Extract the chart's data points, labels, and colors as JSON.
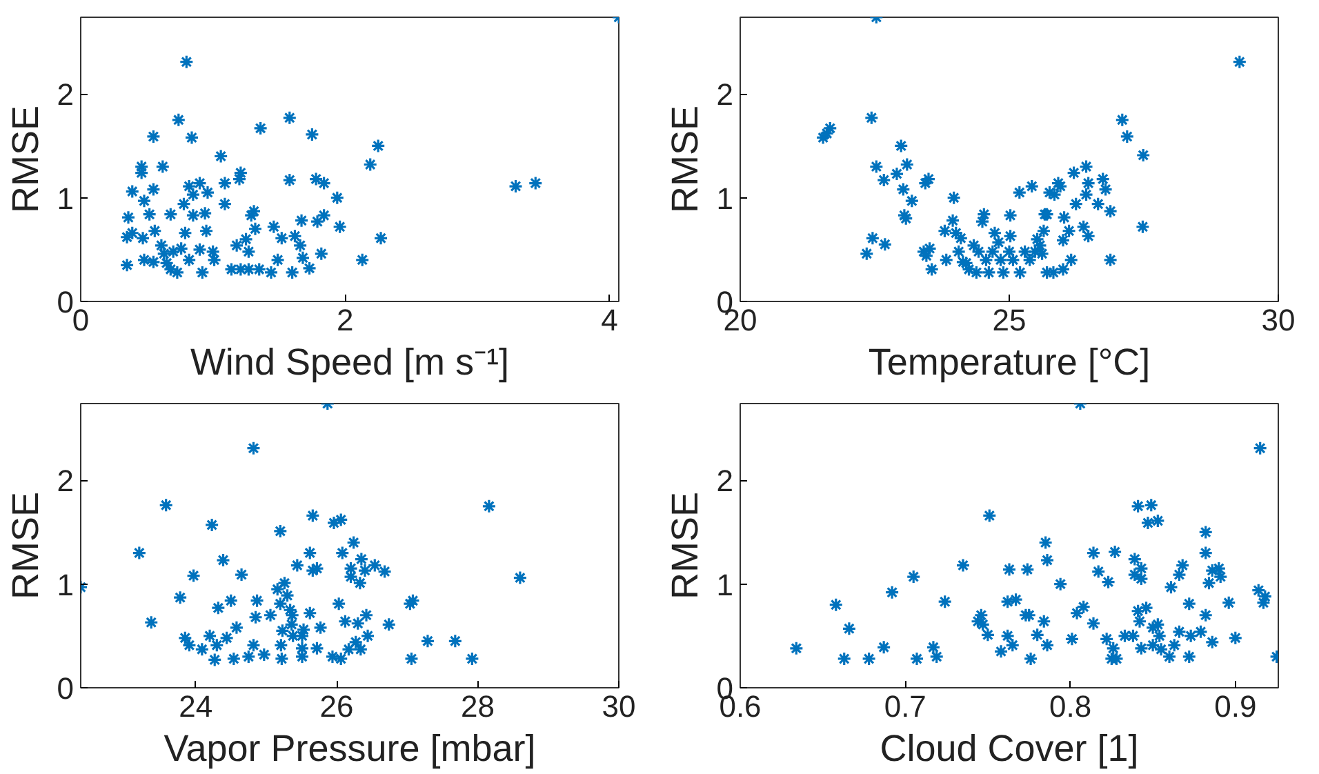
{
  "chart_data": [
    {
      "type": "scatter",
      "xlabel": "Wind Speed [m s⁻¹]",
      "ylabel": "RMSE",
      "xlim": [
        0,
        4.07
      ],
      "xticks": [
        0,
        2,
        4
      ],
      "ylim": [
        0,
        2.74
      ],
      "yticks": [
        0,
        1,
        2
      ],
      "grid": false,
      "marker": "cross",
      "x": [
        4.07,
        0.8,
        0.74,
        0.84,
        0.55,
        0.46,
        0.46,
        0.62,
        0.39,
        0.55,
        0.48,
        0.36,
        0.52,
        0.35,
        0.39,
        0.47,
        0.35,
        0.48,
        0.55,
        0.56,
        0.61,
        0.63,
        0.65,
        0.68,
        0.73,
        0.68,
        0.7,
        0.76,
        0.79,
        0.82,
        0.78,
        0.82,
        0.85,
        0.9,
        0.96,
        0.85,
        0.94,
        0.95,
        0.9,
        1.0,
        1.01,
        0.92,
        1.06,
        1.09,
        1.09,
        1.21,
        1.2,
        1.18,
        1.25,
        1.27,
        1.14,
        1.21,
        1.27,
        1.29,
        1.31,
        1.32,
        1.36,
        1.35,
        1.44,
        1.46,
        1.49,
        1.52,
        1.58,
        1.58,
        1.6,
        1.62,
        1.66,
        1.68,
        1.73,
        1.67,
        1.75,
        1.78,
        1.84,
        1.79,
        1.84,
        1.82,
        1.94,
        1.96,
        2.13,
        2.19,
        2.25,
        2.27,
        3.29,
        3.44
      ],
      "series": [
        {
          "color": "#0072bd",
          "values": [
            2.74,
            2.31,
            1.75,
            1.58,
            1.59,
            1.3,
            1.24,
            1.3,
            1.06,
            1.08,
            0.97,
            0.81,
            0.84,
            0.62,
            0.66,
            0.61,
            0.35,
            0.4,
            0.38,
            0.68,
            0.54,
            0.46,
            0.37,
            0.31,
            0.28,
            0.84,
            0.48,
            0.51,
            0.66,
            0.4,
            0.94,
            1.11,
            1.03,
            1.14,
            1.05,
            0.83,
            0.85,
            0.68,
            0.5,
            0.48,
            0.4,
            0.28,
            1.4,
            1.14,
            0.94,
            1.24,
            1.18,
            0.54,
            0.6,
            0.48,
            0.31,
            0.31,
            0.31,
            0.83,
            0.87,
            0.7,
            1.67,
            0.31,
            0.28,
            0.72,
            0.4,
            0.61,
            1.77,
            1.17,
            0.28,
            0.63,
            0.54,
            0.42,
            0.32,
            0.78,
            1.61,
            1.18,
            1.14,
            0.77,
            0.83,
            0.46,
            1.0,
            0.72,
            0.4,
            1.32,
            1.5,
            0.61,
            1.11,
            1.14
          ]
        }
      ]
    },
    {
      "type": "scatter",
      "xlabel": "Temperature [°C]",
      "ylabel": "RMSE",
      "xlim": [
        20,
        30
      ],
      "xticks": [
        20,
        25,
        30
      ],
      "ylim": [
        0,
        2.74
      ],
      "yticks": [
        0,
        1,
        2
      ],
      "grid": false,
      "marker": "cross",
      "x": [
        22.53,
        29.28,
        21.54,
        21.61,
        21.67,
        22.44,
        22.53,
        22.67,
        22.91,
        22.99,
        23.1,
        23.03,
        23.19,
        23.05,
        23.08,
        22.35,
        22.46,
        22.69,
        23.44,
        23.5,
        23.41,
        23.46,
        23.52,
        23.56,
        23.8,
        23.83,
        23.95,
        23.97,
        24.01,
        24.06,
        24.1,
        24.14,
        24.2,
        24.25,
        24.34,
        24.39,
        24.43,
        24.5,
        24.53,
        24.57,
        24.62,
        24.69,
        24.73,
        24.8,
        24.84,
        24.89,
        25.0,
        25.02,
        25.02,
        25.07,
        25.19,
        25.2,
        25.29,
        25.38,
        25.42,
        25.48,
        25.52,
        25.57,
        25.64,
        25.61,
        25.66,
        25.7,
        25.7,
        25.75,
        25.82,
        25.84,
        25.91,
        25.95,
        26.0,
        26.02,
        26.0,
        26.11,
        26.15,
        26.2,
        26.24,
        26.38,
        26.43,
        26.43,
        26.47,
        26.47,
        26.65,
        26.74,
        26.79,
        26.88,
        26.88,
        27.1,
        27.19,
        27.48,
        27.49
      ],
      "series": [
        {
          "color": "#0072bd",
          "values": [
            2.74,
            2.31,
            1.58,
            1.62,
            1.67,
            1.77,
            1.3,
            1.17,
            1.23,
            1.5,
            1.32,
            1.08,
            0.97,
            0.83,
            0.8,
            0.46,
            0.61,
            0.55,
            1.14,
            1.18,
            0.48,
            0.44,
            0.51,
            0.31,
            0.68,
            0.4,
            0.78,
            1.0,
            0.66,
            0.48,
            0.61,
            0.38,
            0.37,
            0.31,
            0.54,
            0.28,
            0.48,
            0.77,
            0.84,
            0.4,
            0.28,
            0.48,
            0.66,
            0.57,
            0.4,
            0.28,
            0.48,
            0.83,
            0.63,
            0.4,
            1.05,
            0.28,
            0.48,
            0.4,
            1.11,
            0.48,
            0.6,
            0.54,
            0.68,
            0.46,
            0.84,
            0.84,
            0.28,
            1.05,
            0.28,
            1.03,
            1.14,
            1.11,
            0.59,
            0.81,
            0.31,
            0.68,
            0.4,
            1.24,
            0.94,
            0.72,
            1.3,
            1.03,
            1.14,
            0.63,
            0.94,
            1.18,
            1.08,
            0.87,
            0.4,
            1.75,
            1.59,
            0.72,
            1.41
          ]
        }
      ]
    },
    {
      "type": "scatter",
      "xlabel": "Vapor Pressure [mbar]",
      "ylabel": "RMSE",
      "xlim": [
        22.37,
        30
      ],
      "xticks": [
        24,
        26,
        28,
        30
      ],
      "ylim": [
        0,
        2.74
      ],
      "yticks": [
        0,
        1,
        2
      ],
      "grid": false,
      "marker": "cross",
      "x": [
        22.37,
        25.87,
        24.82,
        23.58,
        23.2,
        23.37,
        24.23,
        24.39,
        24.65,
        23.97,
        23.78,
        23.85,
        23.91,
        24.09,
        24.2,
        24.27,
        24.3,
        24.32,
        24.44,
        24.5,
        24.58,
        24.54,
        24.75,
        24.82,
        24.85,
        24.87,
        24.97,
        25.06,
        25.2,
        25.16,
        25.2,
        25.21,
        25.22,
        25.23,
        25.26,
        25.3,
        25.34,
        25.36,
        25.37,
        25.38,
        25.44,
        25.51,
        25.51,
        25.51,
        25.53,
        25.62,
        25.62,
        25.66,
        25.66,
        25.72,
        25.72,
        25.77,
        25.96,
        26.06,
        25.94,
        26.03,
        26.06,
        26.08,
        26.12,
        26.17,
        26.2,
        26.24,
        26.2,
        26.3,
        26.33,
        26.35,
        26.4,
        26.27,
        26.34,
        26.42,
        26.44,
        26.54,
        26.68,
        26.74,
        27.04,
        27.08,
        27.06,
        27.29,
        27.68,
        27.92,
        28.16,
        28.6
      ],
      "series": [
        {
          "color": "#0072bd",
          "values": [
            0.97,
            2.74,
            2.31,
            1.76,
            1.3,
            0.63,
            1.57,
            1.23,
            1.09,
            1.08,
            0.87,
            0.48,
            0.41,
            0.37,
            0.5,
            0.27,
            0.41,
            0.77,
            0.48,
            0.84,
            0.58,
            0.28,
            0.3,
            0.41,
            0.68,
            0.84,
            0.32,
            0.7,
            1.51,
            0.95,
            0.81,
            0.41,
            0.28,
            0.55,
            1.01,
            0.89,
            0.75,
            0.61,
            0.7,
            0.5,
            1.18,
            0.5,
            0.38,
            0.3,
            0.56,
            1.3,
            0.72,
            1.66,
            1.13,
            1.15,
            0.38,
            0.58,
            1.59,
            1.62,
            0.3,
            0.81,
            0.28,
            1.3,
            0.64,
            0.37,
            1.15,
            1.4,
            1.07,
            0.62,
            1.01,
            1.24,
            1.13,
            0.44,
            0.37,
            0.7,
            0.5,
            1.18,
            1.12,
            0.61,
            0.81,
            0.84,
            0.28,
            0.45,
            0.45,
            0.28,
            1.75,
            1.06
          ]
        }
      ]
    },
    {
      "type": "scatter",
      "xlabel": "Cloud Cover [1]",
      "ylabel": "RMSE",
      "xlim": [
        0.6,
        0.926
      ],
      "xticks": [
        0.6,
        0.7,
        0.8,
        0.9
      ],
      "ylim": [
        0,
        2.74
      ],
      "yticks": [
        0,
        1,
        2
      ],
      "grid": false,
      "marker": "cross",
      "x": [
        0.634,
        0.658,
        0.663,
        0.666,
        0.678,
        0.687,
        0.692,
        0.705,
        0.707,
        0.717,
        0.719,
        0.724,
        0.735,
        0.744,
        0.746,
        0.747,
        0.75,
        0.751,
        0.758,
        0.762,
        0.763,
        0.762,
        0.765,
        0.767,
        0.773,
        0.774,
        0.775,
        0.776,
        0.78,
        0.784,
        0.785,
        0.786,
        0.786,
        0.794,
        0.801,
        0.804,
        0.806,
        0.808,
        0.814,
        0.814,
        0.817,
        0.822,
        0.823,
        0.825,
        0.826,
        0.827,
        0.828,
        0.833,
        0.838,
        0.839,
        0.839,
        0.841,
        0.841,
        0.842,
        0.843,
        0.843,
        0.843,
        0.846,
        0.847,
        0.849,
        0.85,
        0.85,
        0.853,
        0.853,
        0.854,
        0.855,
        0.86,
        0.861,
        0.863,
        0.866,
        0.866,
        0.868,
        0.872,
        0.872,
        0.873,
        0.879,
        0.882,
        0.882,
        0.882,
        0.884,
        0.886,
        0.886,
        0.89,
        0.891,
        0.896,
        0.9,
        0.914,
        0.915,
        0.917,
        0.918,
        0.925
      ],
      "series": [
        {
          "color": "#0072bd",
          "values": [
            0.38,
            0.8,
            0.28,
            0.57,
            0.28,
            0.39,
            0.92,
            1.07,
            0.28,
            0.39,
            0.3,
            0.83,
            1.18,
            0.64,
            0.7,
            0.61,
            0.51,
            1.66,
            0.35,
            0.83,
            1.14,
            0.5,
            0.41,
            0.85,
            0.7,
            1.14,
            0.7,
            0.28,
            0.51,
            0.64,
            1.4,
            1.23,
            0.41,
            1.0,
            0.47,
            0.72,
            2.74,
            0.78,
            0.62,
            1.3,
            1.12,
            0.47,
            1.02,
            0.28,
            0.38,
            1.31,
            0.28,
            0.5,
            0.5,
            1.24,
            1.09,
            1.75,
            0.74,
            0.64,
            1.15,
            1.05,
            0.38,
            0.77,
            1.59,
            1.76,
            0.58,
            0.41,
            1.61,
            0.61,
            0.5,
            0.37,
            0.3,
            0.97,
            0.41,
            0.54,
            1.09,
            1.18,
            0.81,
            0.3,
            0.5,
            0.54,
            0.7,
            1.5,
            1.3,
            1.01,
            0.44,
            1.13,
            1.15,
            1.07,
            0.82,
            0.48,
            0.94,
            2.31,
            0.82,
            0.88,
            0.3
          ]
        }
      ]
    }
  ]
}
